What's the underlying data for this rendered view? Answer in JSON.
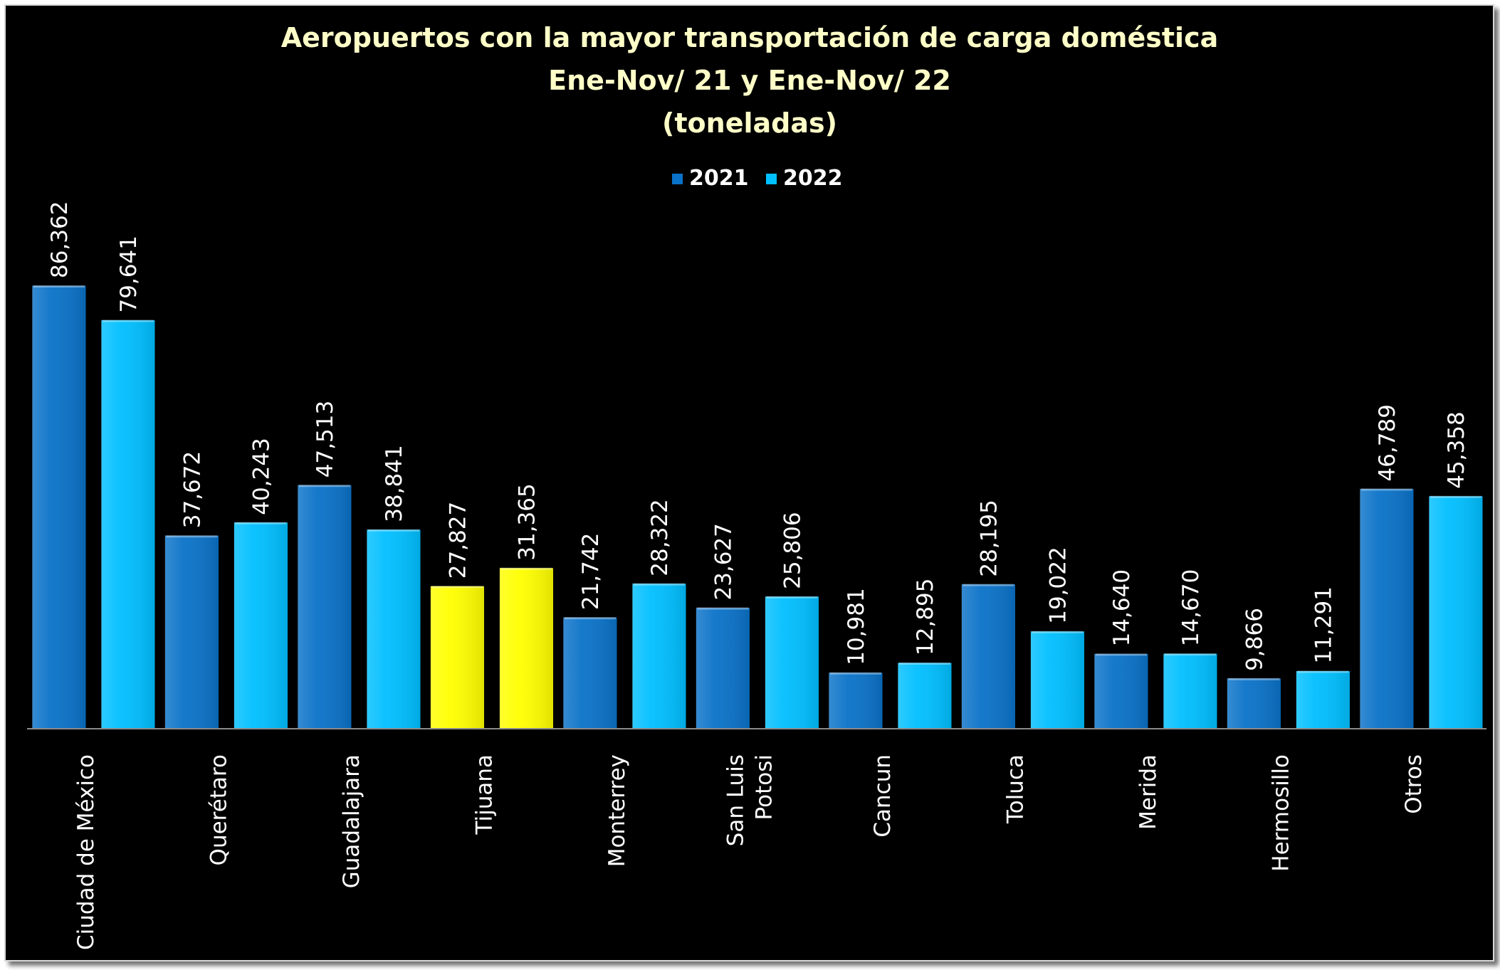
{
  "chart_data": {
    "type": "bar",
    "title_lines": [
      "Aeropuertos con la mayor transportación de carga doméstica",
      "Ene-Nov/ 21 y Ene-Nov/ 22",
      "(toneladas)"
    ],
    "categories": [
      [
        "Ciudad de México"
      ],
      [
        "Querétaro"
      ],
      [
        "Guadalajara"
      ],
      [
        "Tijuana"
      ],
      [
        "Monterrey"
      ],
      [
        "San Luis",
        "Potosi"
      ],
      [
        "Cancun"
      ],
      [
        "Toluca"
      ],
      [
        "Merida"
      ],
      [
        "Hermosillo"
      ],
      [
        "Otros"
      ]
    ],
    "series": [
      {
        "name": "2021",
        "color": "#0a72c8",
        "values": [
          86362,
          37672,
          47513,
          27827,
          21742,
          23627,
          10981,
          28195,
          14640,
          9866,
          46789
        ],
        "labels": [
          "86,362",
          "37,672",
          "47,513",
          "27,827",
          "21,742",
          "23,627",
          "10,981",
          "28,195",
          "14,640",
          "9,866",
          "46,789"
        ]
      },
      {
        "name": "2022",
        "color": "#00bfff",
        "values": [
          79641,
          40243,
          38841,
          31365,
          28322,
          25806,
          12895,
          19022,
          14670,
          11291,
          45358
        ],
        "labels": [
          "79,641",
          "40,243",
          "38,841",
          "31,365",
          "28,322",
          "25,806",
          "12,895",
          "19,022",
          "14,670",
          "11,291",
          "45,358"
        ]
      }
    ],
    "highlight": {
      "category_index": 3,
      "color": "#ffff00"
    },
    "ylim": [
      0,
      100000
    ],
    "grid": false,
    "legend_position": "top-center",
    "background": "#000000"
  }
}
